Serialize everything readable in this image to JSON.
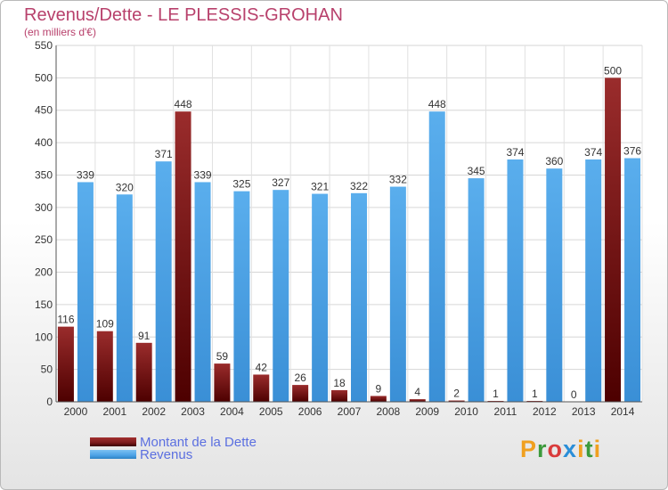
{
  "header": {
    "title": "Revenus/Dette - LE PLESSIS-GROHAN",
    "subtitle": "(en milliers d'€)"
  },
  "legend": {
    "items": [
      {
        "label": "Montant de la Dette",
        "color": "#7a1a1a"
      },
      {
        "label": "Revenus",
        "color": "#4da3e6"
      }
    ]
  },
  "logo": {
    "letters": [
      "P",
      "r",
      "o",
      "x",
      "i",
      "t",
      "i"
    ],
    "colors": [
      "#f0a020",
      "#3c9a3c",
      "#d93b3b",
      "#2a8ed8",
      "#f0a020",
      "#3c9a3c",
      "#f0a020"
    ]
  },
  "chart_data": {
    "type": "bar",
    "categories": [
      "2000",
      "2001",
      "2002",
      "2003",
      "2004",
      "2005",
      "2006",
      "2007",
      "2008",
      "2009",
      "2010",
      "2011",
      "2012",
      "2013",
      "2014"
    ],
    "series": [
      {
        "name": "Montant de la Dette",
        "color": "#7a1a1a",
        "values": [
          116,
          109,
          91,
          448,
          59,
          42,
          26,
          18,
          9,
          4,
          2,
          1,
          1,
          0,
          500
        ]
      },
      {
        "name": "Revenus",
        "color": "#4da3e6",
        "values": [
          339,
          320,
          371,
          339,
          325,
          327,
          321,
          322,
          332,
          448,
          345,
          374,
          360,
          374,
          376
        ]
      }
    ],
    "ylim": [
      0,
      550
    ],
    "yticks": [
      0,
      50,
      100,
      150,
      200,
      250,
      300,
      350,
      400,
      450,
      500,
      550
    ],
    "grid": true,
    "legend_position": "bottom-left"
  }
}
